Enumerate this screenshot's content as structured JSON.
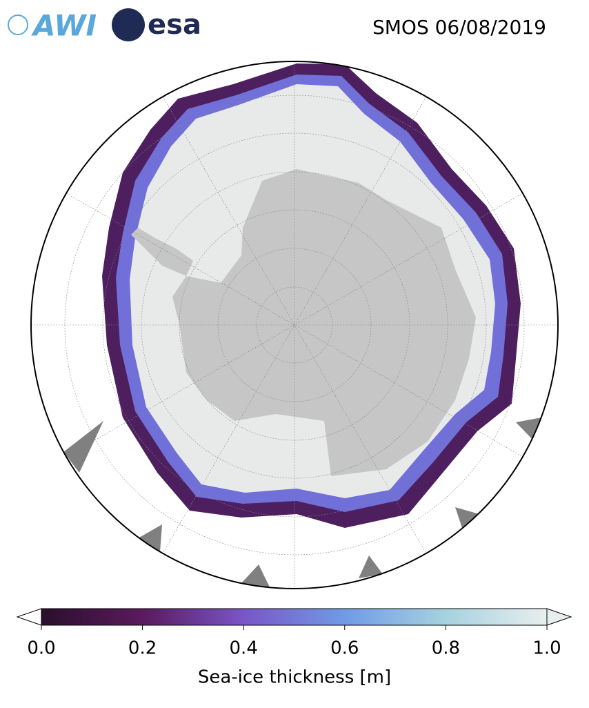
{
  "header": {
    "logos": [
      "AWI",
      "esa"
    ],
    "title": "SMOS 06/08/2019"
  },
  "colorbar": {
    "label": "Sea-ice thickness [m]",
    "lim": [
      0,
      1
    ],
    "ticks": [
      {
        "value": 0,
        "label": "0.0"
      },
      0.2,
      0.4,
      0.6,
      0.8,
      {
        "value": 1,
        "label": "1.0"
      }
    ],
    "colors": [
      "#2a0f2c",
      "#5a1a5c",
      "#7a55c8",
      "#6f9be6",
      "#a6d2e0",
      "#e8eeee"
    ]
  }
}
